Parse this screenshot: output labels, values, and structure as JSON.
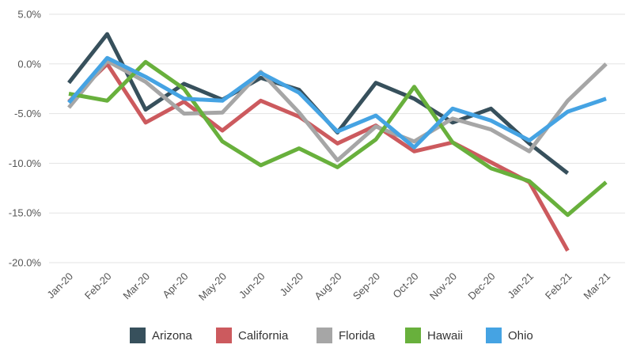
{
  "chart_data": {
    "type": "line",
    "categories": [
      "Jan-20",
      "Feb-20",
      "Mar-20",
      "Apr-20",
      "May-20",
      "Jun-20",
      "Jul-20",
      "Aug-20",
      "Sep-20",
      "Oct-20",
      "Nov-20",
      "Dec-20",
      "Jan-21",
      "Feb-21",
      "Mar-21"
    ],
    "ylim": [
      -20,
      5
    ],
    "yticks": [
      5,
      0,
      -5,
      -10,
      -15,
      -20
    ],
    "ytick_labels": [
      "5.0%",
      "0.0%",
      "-5.0%",
      "-10.0%",
      "-15.0%",
      "-20.0%"
    ],
    "grid": true,
    "legend_position": "bottom",
    "series": [
      {
        "name": "Arizona",
        "color": "#37505c",
        "values": [
          -1.9,
          3.0,
          -4.6,
          -2.0,
          -3.6,
          -1.4,
          -2.6,
          -6.9,
          -1.9,
          -3.5,
          -5.9,
          -4.5,
          -8.0,
          -11.0,
          null
        ]
      },
      {
        "name": "California",
        "color": "#cc5a5e",
        "values": [
          -3.8,
          0.0,
          -5.9,
          -3.8,
          -6.7,
          -3.7,
          -5.3,
          -8.0,
          -6.2,
          -8.8,
          -7.9,
          -9.9,
          -11.9,
          -18.8,
          null
        ]
      },
      {
        "name": "Florida",
        "color": "#a6a6a6",
        "values": [
          -4.4,
          0.3,
          -1.8,
          -5.0,
          -4.9,
          -0.8,
          -4.9,
          -9.7,
          -6.3,
          -7.8,
          -5.5,
          -6.6,
          -8.8,
          -3.7,
          0.0
        ]
      },
      {
        "name": "Hawaii",
        "color": "#68b03c",
        "values": [
          -3.0,
          -3.7,
          0.2,
          -2.5,
          -7.8,
          -10.2,
          -8.5,
          -10.4,
          -7.6,
          -2.3,
          -7.9,
          -10.5,
          -11.8,
          -15.2,
          -11.9
        ]
      },
      {
        "name": "Ohio",
        "color": "#45a3e3",
        "values": [
          -3.9,
          0.6,
          -1.3,
          -3.5,
          -3.7,
          -0.9,
          -2.9,
          -6.8,
          -5.2,
          -8.4,
          -4.5,
          -5.7,
          -7.7,
          -4.8,
          -3.5
        ]
      }
    ]
  }
}
